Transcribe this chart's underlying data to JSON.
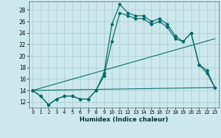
{
  "title": "",
  "xlabel": "Humidex (Indice chaleur)",
  "bg_color": "#cce8ec",
  "grid_color": "#aacdd4",
  "line_color": "#006868",
  "xlim": [
    -0.5,
    23.5
  ],
  "ylim": [
    11.0,
    29.5
  ],
  "yticks": [
    12,
    14,
    16,
    18,
    20,
    22,
    24,
    26,
    28
  ],
  "xticks": [
    0,
    1,
    2,
    3,
    4,
    5,
    6,
    7,
    8,
    9,
    10,
    11,
    12,
    13,
    14,
    15,
    16,
    17,
    18,
    19,
    20,
    21,
    22,
    23
  ],
  "line1_x": [
    0,
    1,
    2,
    3,
    4,
    5,
    6,
    7,
    8,
    9,
    10,
    11,
    12,
    13,
    14,
    15,
    16,
    17,
    18,
    19,
    20,
    21,
    22,
    23
  ],
  "line1_y": [
    14.0,
    13.0,
    11.5,
    12.5,
    13.0,
    13.0,
    12.5,
    12.5,
    14.0,
    17.0,
    25.5,
    29.0,
    27.5,
    27.0,
    27.0,
    26.0,
    26.5,
    25.5,
    23.5,
    22.5,
    24.0,
    18.5,
    17.5,
    14.5
  ],
  "line2_x": [
    0,
    1,
    2,
    3,
    4,
    5,
    6,
    7,
    8,
    9,
    10,
    11,
    12,
    13,
    14,
    15,
    16,
    17,
    18,
    19,
    20,
    21,
    22,
    23
  ],
  "line2_y": [
    14.0,
    13.0,
    11.5,
    12.5,
    13.0,
    13.0,
    12.5,
    12.5,
    14.0,
    16.5,
    22.5,
    27.5,
    27.0,
    26.5,
    26.5,
    25.5,
    26.0,
    25.0,
    23.0,
    22.5,
    24.0,
    18.5,
    17.0,
    14.5
  ],
  "line3_x": [
    0,
    23
  ],
  "line3_y": [
    14.0,
    14.5
  ],
  "line4_x": [
    0,
    23
  ],
  "line4_y": [
    14.0,
    23.0
  ]
}
